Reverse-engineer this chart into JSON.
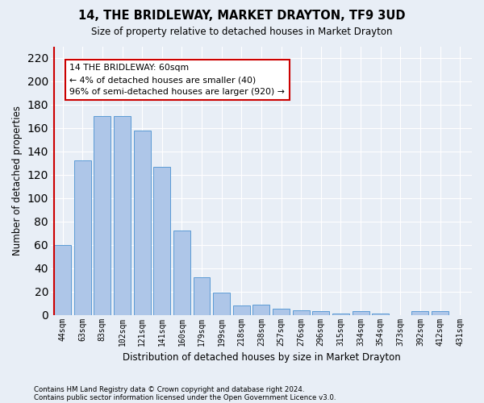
{
  "title": "14, THE BRIDLEWAY, MARKET DRAYTON, TF9 3UD",
  "subtitle": "Size of property relative to detached houses in Market Drayton",
  "xlabel": "Distribution of detached houses by size in Market Drayton",
  "ylabel": "Number of detached properties",
  "categories": [
    "44sqm",
    "63sqm",
    "83sqm",
    "102sqm",
    "121sqm",
    "141sqm",
    "160sqm",
    "179sqm",
    "199sqm",
    "218sqm",
    "238sqm",
    "257sqm",
    "276sqm",
    "296sqm",
    "315sqm",
    "334sqm",
    "354sqm",
    "373sqm",
    "392sqm",
    "412sqm",
    "431sqm"
  ],
  "values": [
    60,
    132,
    170,
    170,
    158,
    127,
    72,
    32,
    19,
    8,
    9,
    5,
    4,
    3,
    1,
    3,
    1,
    0,
    3,
    3,
    0
  ],
  "bar_color": "#aec6e8",
  "bar_edge_color": "#5b9bd5",
  "highlight_line_color": "#cc0000",
  "ylim": [
    0,
    230
  ],
  "yticks": [
    0,
    20,
    40,
    60,
    80,
    100,
    120,
    140,
    160,
    180,
    200,
    220
  ],
  "annotation_text": "14 THE BRIDLEWAY: 60sqm\n← 4% of detached houses are smaller (40)\n96% of semi-detached houses are larger (920) →",
  "annotation_box_color": "#ffffff",
  "annotation_border_color": "#cc0000",
  "bg_color": "#e8eef6",
  "grid_color": "#ffffff",
  "footer_line1": "Contains HM Land Registry data © Crown copyright and database right 2024.",
  "footer_line2": "Contains public sector information licensed under the Open Government Licence v3.0."
}
